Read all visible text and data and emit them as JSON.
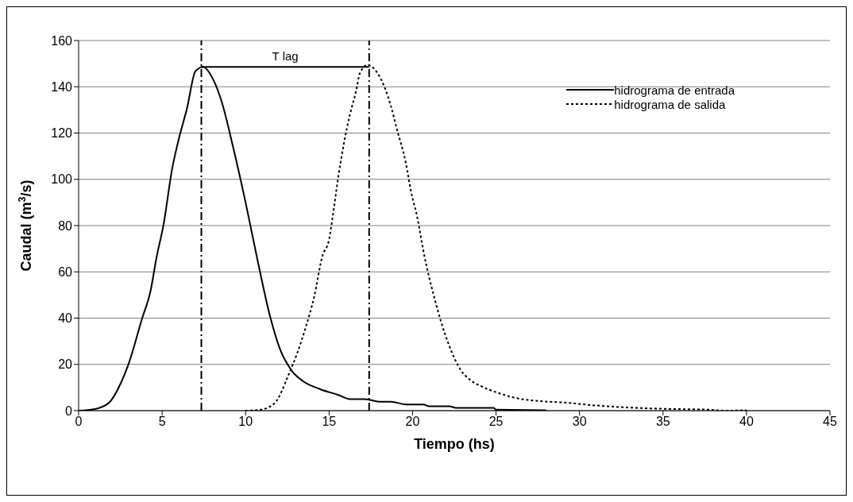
{
  "chart_data": {
    "type": "line",
    "xlabel": "Tiempo (hs)",
    "ylabel": "Caudal (m$^{3}$/s)",
    "xlim": [
      0,
      45
    ],
    "xticks": [
      0,
      5,
      10,
      15,
      20,
      25,
      30,
      35,
      40,
      45
    ],
    "ylim": [
      0,
      160
    ],
    "yticks": [
      0,
      20,
      40,
      60,
      80,
      100,
      120,
      140,
      160
    ],
    "grid": "y",
    "legend": "top right",
    "marker": "none",
    "series": [
      {
        "name": "hidrograma de entrada",
        "color": "#000000",
        "line_style": "solid",
        "x": [
          0,
          0.9,
          1.8,
          2.5,
          3.0,
          3.8,
          4.3,
          4.65,
          5.1,
          5.6,
          5.95,
          6.5,
          7.0,
          7.45,
          8.05,
          8.55,
          9.25,
          10.0,
          10.7,
          11.5,
          12.05,
          12.75,
          13.45,
          14.5,
          15.55,
          16.25,
          17.15,
          18.0,
          18.7,
          19.6,
          20.65,
          21.0,
          22.2,
          22.6,
          24.85,
          25.0,
          28.0
        ],
        "values": [
          0,
          0.6,
          3.3,
          11.5,
          20.4,
          39.8,
          51.5,
          65.6,
          81,
          104.5,
          116,
          131,
          146.8,
          148.6,
          143.3,
          134,
          114,
          90,
          65.6,
          39.8,
          26.8,
          17.4,
          12.7,
          9.2,
          6.8,
          5,
          5,
          3.9,
          3.9,
          2.7,
          2.7,
          1.9,
          1.9,
          1.2,
          1.2,
          0.4,
          0.2
        ]
      },
      {
        "name": "hidrograma de salida",
        "color": "#000000",
        "line_style": "dotted",
        "x": [
          10.0,
          10.9,
          11.75,
          12.6,
          13.1,
          13.6,
          14.1,
          14.6,
          15.0,
          15.2,
          15.55,
          15.9,
          16.25,
          16.6,
          16.85,
          17.3,
          18.0,
          18.7,
          19.05,
          19.6,
          19.9,
          20.3,
          20.65,
          21.0,
          21.3,
          21.7,
          22.2,
          22.9,
          23.45,
          24.15,
          25.0,
          26.1,
          27.9,
          29.1,
          30.7,
          33.1,
          35.05,
          37.8,
          38.7,
          40.0
        ],
        "values": [
          0,
          0.4,
          3.3,
          16,
          25,
          36,
          49,
          66.8,
          74,
          83,
          101,
          116,
          128,
          137.6,
          146,
          149.4,
          144.7,
          131.8,
          122,
          107,
          95,
          83,
          69,
          57.4,
          49,
          38.6,
          28,
          17.4,
          13.3,
          10.4,
          8,
          5.6,
          4,
          3.5,
          2.4,
          1.3,
          0.8,
          0.4,
          0,
          0.2
        ]
      }
    ],
    "ref_lines": [
      {
        "axis": "x",
        "value": 7.35,
        "color": "#000000",
        "line_style": "dashed"
      },
      {
        "axis": "x",
        "value": 17.4,
        "color": "#000000",
        "line_style": "dashed"
      }
    ],
    "annotations": [
      "T lag"
    ]
  }
}
